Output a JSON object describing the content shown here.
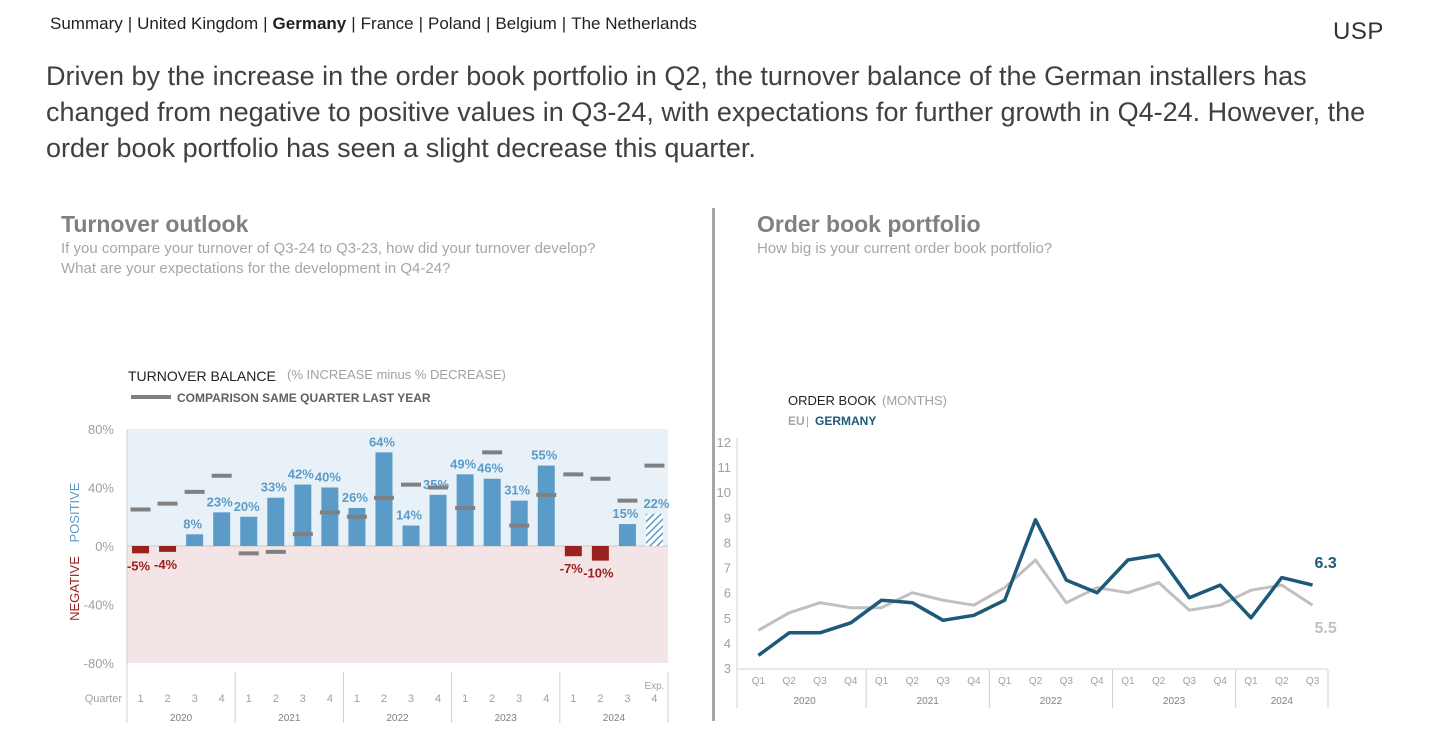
{
  "nav": {
    "items": [
      {
        "label": "Summary",
        "active": false
      },
      {
        "label": "United Kingdom",
        "active": false
      },
      {
        "label": "Germany",
        "active": true
      },
      {
        "label": "France",
        "active": false
      },
      {
        "label": "Poland",
        "active": false
      },
      {
        "label": "Belgium",
        "active": false
      },
      {
        "label": "The Netherlands",
        "active": false
      }
    ],
    "separator": "|"
  },
  "logo": "USP",
  "headline": "Driven by the increase in the order book portfolio in Q2, the turnover balance of the German installers has changed from negative to positive values in Q3-24, with expectations for further growth in Q4-24. However, the order book portfolio has seen a slight decrease this quarter.",
  "left_panel": {
    "title": "Turnover outlook",
    "subtitle_line1": "If you compare your turnover of Q3-24 to Q3-23, how did your turnover develop?",
    "subtitle_line2": "What are your expectations for the development in Q4-24?"
  },
  "right_panel": {
    "title": "Order book portfolio",
    "subtitle": "How big is your current order book portfolio?"
  },
  "colors": {
    "bar_positive": "#5b9bc8",
    "bar_negative": "#9b2020",
    "comparison_marker": "#808080",
    "positive_bg": "#e9f1f8",
    "negative_bg": "#f3e5e5",
    "eu_line": "#c0c0c0",
    "germany_line": "#1d5a7a",
    "divider": "#a6a6a6"
  },
  "chart_data": [
    {
      "type": "bar",
      "title": "TURNOVER BALANCE",
      "title_note": "(% INCREASE minus % DECREASE)",
      "comparison_legend": "COMPARISON SAME QUARTER LAST YEAR",
      "positive_label": "POSITIVE",
      "negative_label": "NEGATIVE",
      "xlabel": "Quarter",
      "expectation_label": "Exp.",
      "ylim": [
        -80,
        80
      ],
      "y_ticks": [
        "80%",
        "40%",
        "0%",
        "-40%",
        "-80%"
      ],
      "years": [
        "2020",
        "2021",
        "2022",
        "2023",
        "2024"
      ],
      "categories": [
        "1",
        "2",
        "3",
        "4",
        "1",
        "2",
        "3",
        "4",
        "1",
        "2",
        "3",
        "4",
        "1",
        "2",
        "3",
        "4",
        "1",
        "2",
        "3",
        "4"
      ],
      "values": [
        -5,
        -4,
        8,
        23,
        20,
        33,
        42,
        40,
        26,
        64,
        14,
        35,
        49,
        46,
        31,
        55,
        -7,
        -10,
        15,
        22
      ],
      "value_labels": [
        "-5%",
        "-4%",
        "8%",
        "23%",
        "20%",
        "33%",
        "42%",
        "40%",
        "26%",
        "64%",
        "14%",
        "35%",
        "49%",
        "46%",
        "31%",
        "55%",
        "-7%",
        "-10%",
        "15%",
        "22%"
      ],
      "comparison": [
        25,
        29,
        37,
        48,
        -5,
        -4,
        8,
        23,
        20,
        33,
        42,
        40,
        26,
        64,
        14,
        35,
        49,
        46,
        31,
        55
      ],
      "expected_index": 19
    },
    {
      "type": "line",
      "title": "ORDER BOOK",
      "title_note": "(MONTHS)",
      "legend_eu": "EU",
      "legend_sep": "|",
      "legend_country": "GERMANY",
      "ylim": [
        3,
        12
      ],
      "y_ticks": [
        "12",
        "11",
        "10",
        "9",
        "8",
        "7",
        "6",
        "5",
        "4",
        "3"
      ],
      "x": [
        "Q1",
        "Q2",
        "Q3",
        "Q4",
        "Q1",
        "Q2",
        "Q3",
        "Q4",
        "Q1",
        "Q2",
        "Q3",
        "Q4",
        "Q1",
        "Q2",
        "Q3",
        "Q4",
        "Q1",
        "Q2",
        "Q3"
      ],
      "years": [
        "2020",
        "2021",
        "2022",
        "2023",
        "2024"
      ],
      "year_lengths": [
        4,
        4,
        4,
        4,
        3
      ],
      "series": [
        {
          "name": "EU",
          "values": [
            4.5,
            5.2,
            5.6,
            5.4,
            5.4,
            6.0,
            5.7,
            5.5,
            6.2,
            7.3,
            5.6,
            6.2,
            6.0,
            6.4,
            5.3,
            5.5,
            6.1,
            6.3,
            5.5
          ],
          "end_label": "5.5"
        },
        {
          "name": "GERMANY",
          "values": [
            3.5,
            4.4,
            4.4,
            4.8,
            5.7,
            5.6,
            4.9,
            5.1,
            5.7,
            8.9,
            6.5,
            6.0,
            7.3,
            7.5,
            5.8,
            6.3,
            5.0,
            6.6,
            6.3
          ],
          "end_label": "6.3"
        }
      ]
    }
  ]
}
